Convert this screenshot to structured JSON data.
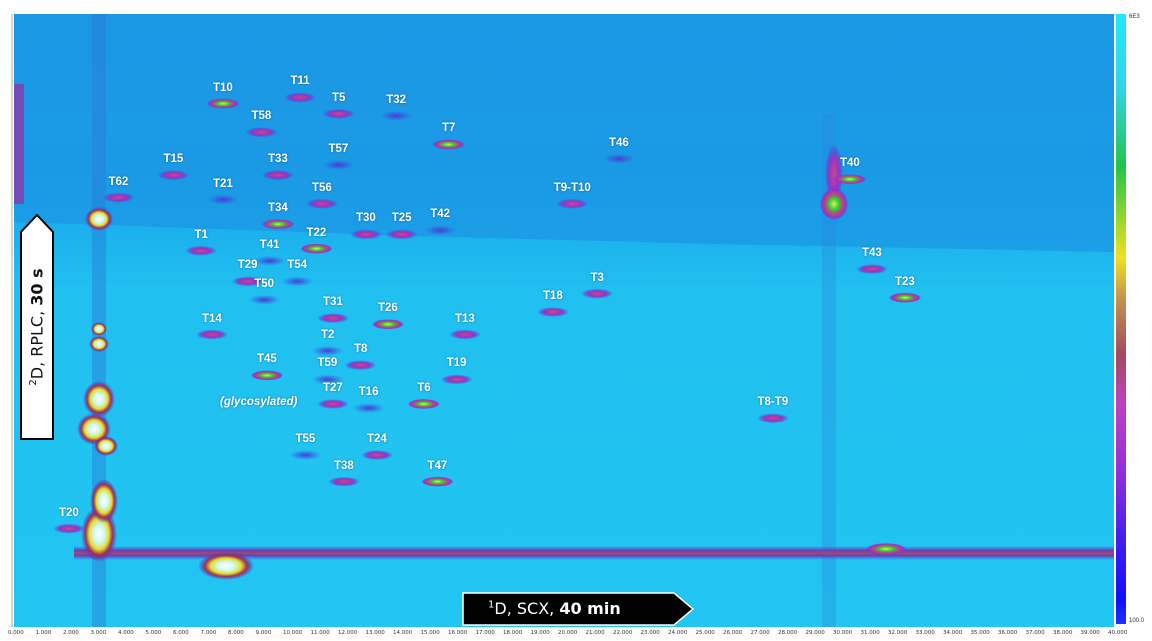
{
  "chart_data": {
    "type": "heatmap",
    "title": "",
    "xlabel": "¹D, SCX, 40 min",
    "xlabel_parts": {
      "sup": "1",
      "main": "D, SCX, ",
      "bold": "40 min"
    },
    "ylabel": "²D, RPLC, 30 s",
    "ylabel_parts": {
      "sup": "2",
      "main": "D, RPLC, ",
      "bold": "30 s"
    },
    "x_unit": "min",
    "xlim": [
      0,
      40
    ],
    "ylim": [
      0,
      30
    ],
    "x_ticks": [
      "0.000",
      "1.000",
      "2.000",
      "3.000",
      "4.000",
      "5.000",
      "6.000",
      "7.000",
      "8.000",
      "9.000",
      "10.000",
      "11.000",
      "12.000",
      "13.000",
      "14.000",
      "15.000",
      "16.000",
      "17.000",
      "18.000",
      "19.000",
      "20.000",
      "21.000",
      "22.000",
      "23.000",
      "24.000",
      "25.000",
      "26.000",
      "27.000",
      "28.000",
      "29.000",
      "30.000",
      "31.000",
      "32.000",
      "33.000",
      "34.000",
      "35.000",
      "36.000",
      "37.000",
      "38.000",
      "39.000",
      "40.000"
    ],
    "colorbar": {
      "max_label": "6E3",
      "min_label": "100.0",
      "scale": "intensity"
    },
    "peaks": [
      {
        "label": "T10",
        "x": 7.6,
        "y": 26.3
      },
      {
        "label": "T11",
        "x": 10.4,
        "y": 26.6
      },
      {
        "label": "T5",
        "x": 11.8,
        "y": 25.8
      },
      {
        "label": "T32",
        "x": 13.9,
        "y": 25.7
      },
      {
        "label": "T58",
        "x": 9.0,
        "y": 24.9
      },
      {
        "label": "T7",
        "x": 15.8,
        "y": 24.3
      },
      {
        "label": "T46",
        "x": 22.0,
        "y": 23.6
      },
      {
        "label": "T15",
        "x": 5.8,
        "y": 22.8
      },
      {
        "label": "T33",
        "x": 9.6,
        "y": 22.8
      },
      {
        "label": "T57",
        "x": 11.8,
        "y": 23.3
      },
      {
        "label": "T40",
        "x": 30.4,
        "y": 22.6
      },
      {
        "label": "T62",
        "x": 3.8,
        "y": 21.7
      },
      {
        "label": "T21",
        "x": 7.6,
        "y": 21.6
      },
      {
        "label": "T56",
        "x": 11.2,
        "y": 21.4
      },
      {
        "label": "T9-T10",
        "x": 20.3,
        "y": 21.4
      },
      {
        "label": "T34",
        "x": 9.6,
        "y": 20.4
      },
      {
        "label": "T30",
        "x": 12.8,
        "y": 19.9
      },
      {
        "label": "T25",
        "x": 14.1,
        "y": 19.9
      },
      {
        "label": "T42",
        "x": 15.5,
        "y": 20.1
      },
      {
        "label": "T1",
        "x": 6.8,
        "y": 19.1
      },
      {
        "label": "T22",
        "x": 11.0,
        "y": 19.2
      },
      {
        "label": "T41",
        "x": 9.3,
        "y": 18.6
      },
      {
        "label": "T43",
        "x": 31.2,
        "y": 18.2
      },
      {
        "label": "T29",
        "x": 8.5,
        "y": 17.6
      },
      {
        "label": "T54",
        "x": 10.3,
        "y": 17.6
      },
      {
        "label": "T23",
        "x": 32.4,
        "y": 16.8
      },
      {
        "label": "T3",
        "x": 21.2,
        "y": 17.0
      },
      {
        "label": "T50",
        "x": 9.1,
        "y": 16.7
      },
      {
        "label": "T18",
        "x": 19.6,
        "y": 16.1
      },
      {
        "label": "T31",
        "x": 11.6,
        "y": 15.8
      },
      {
        "label": "T26",
        "x": 13.6,
        "y": 15.5
      },
      {
        "label": "T14",
        "x": 7.2,
        "y": 15.0
      },
      {
        "label": "T13",
        "x": 16.4,
        "y": 15.0
      },
      {
        "label": "T2",
        "x": 11.4,
        "y": 14.2
      },
      {
        "label": "T8",
        "x": 12.6,
        "y": 13.5
      },
      {
        "label": "T45",
        "x": 9.2,
        "y": 13.0
      },
      {
        "label": "T59",
        "x": 11.4,
        "y": 12.8
      },
      {
        "label": "T19",
        "x": 16.1,
        "y": 12.8
      },
      {
        "label": "T27",
        "x": 11.6,
        "y": 11.6
      },
      {
        "label": "T16",
        "x": 12.9,
        "y": 11.4
      },
      {
        "label": "T6",
        "x": 14.9,
        "y": 11.6
      },
      {
        "label": "T8-T9",
        "x": 27.6,
        "y": 10.9
      },
      {
        "label": "T55",
        "x": 10.6,
        "y": 9.1
      },
      {
        "label": "T24",
        "x": 13.2,
        "y": 9.1
      },
      {
        "label": "T38",
        "x": 12.0,
        "y": 7.8
      },
      {
        "label": "T47",
        "x": 15.4,
        "y": 7.8
      },
      {
        "label": "T20",
        "x": 2.0,
        "y": 5.5
      }
    ],
    "annotation": "(glycosylated)",
    "background_color": "#1fb6ec"
  }
}
